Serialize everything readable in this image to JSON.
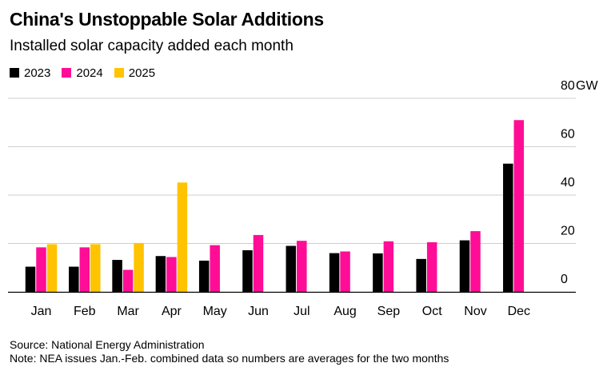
{
  "header": {
    "title": "China's Unstoppable Solar Additions",
    "subtitle": "Installed solar capacity added each month"
  },
  "footer": {
    "source": "Source: National Energy Administration",
    "note": "Note: NEA issues Jan.-Feb. combined data so numbers are averages for the two months"
  },
  "chart_data": {
    "type": "bar",
    "title": "China's Unstoppable Solar Additions",
    "subtitle": "Installed solar capacity added each month",
    "categories": [
      "Jan",
      "Feb",
      "Mar",
      "Apr",
      "May",
      "Jun",
      "Jul",
      "Aug",
      "Sep",
      "Oct",
      "Nov",
      "Dec"
    ],
    "series": [
      {
        "name": "2023",
        "color": "#000000",
        "values": [
          10.4,
          10.4,
          13.2,
          14.8,
          12.9,
          17.2,
          19.0,
          16.0,
          15.9,
          13.6,
          21.3,
          53.0
        ]
      },
      {
        "name": "2024",
        "color": "#ff0d96",
        "values": [
          18.4,
          18.4,
          9.1,
          14.4,
          19.3,
          23.5,
          21.1,
          16.7,
          20.9,
          20.5,
          25.1,
          71.0
        ]
      },
      {
        "name": "2025",
        "color": "#ffc300",
        "values": [
          19.7,
          19.7,
          20.2,
          45.2,
          null,
          null,
          null,
          null,
          null,
          null,
          null,
          null
        ]
      }
    ],
    "y_ticks": [
      "0",
      "20",
      "40",
      "60",
      "80"
    ],
    "y_unit": "GW",
    "ylim": [
      0,
      80
    ],
    "xlabel": "",
    "ylabel": "",
    "legend_position": "top-left",
    "grid": true
  }
}
